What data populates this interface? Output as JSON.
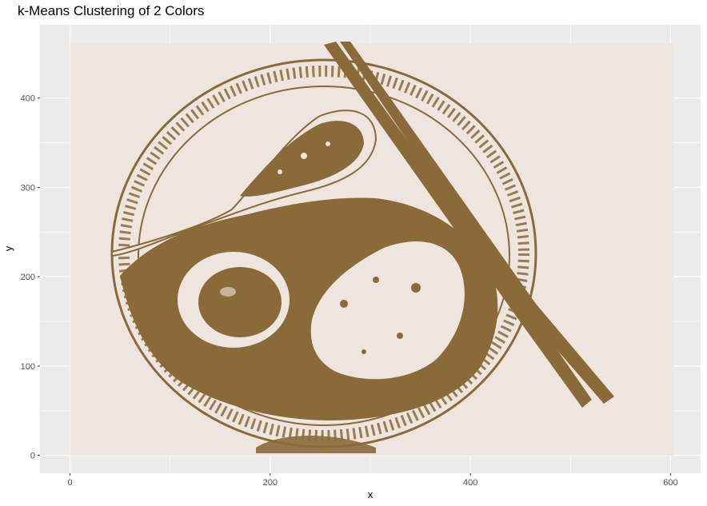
{
  "chart_data": {
    "type": "raster-image",
    "title": "k-Means Clustering of 2 Colors",
    "xlabel": "x",
    "ylabel": "y",
    "xlim": [
      -30,
      630
    ],
    "ylim": [
      -20,
      482
    ],
    "image_extent": {
      "x": [
        0,
        603
      ],
      "y": [
        0,
        461
      ]
    },
    "x_ticks": [
      0,
      200,
      400,
      600
    ],
    "y_ticks": [
      0,
      100,
      200,
      300,
      400
    ],
    "grid": true,
    "cluster_colors": [
      "#EEE5DE",
      "#8A6A39"
    ],
    "panel_background": "#EBEBEB"
  }
}
